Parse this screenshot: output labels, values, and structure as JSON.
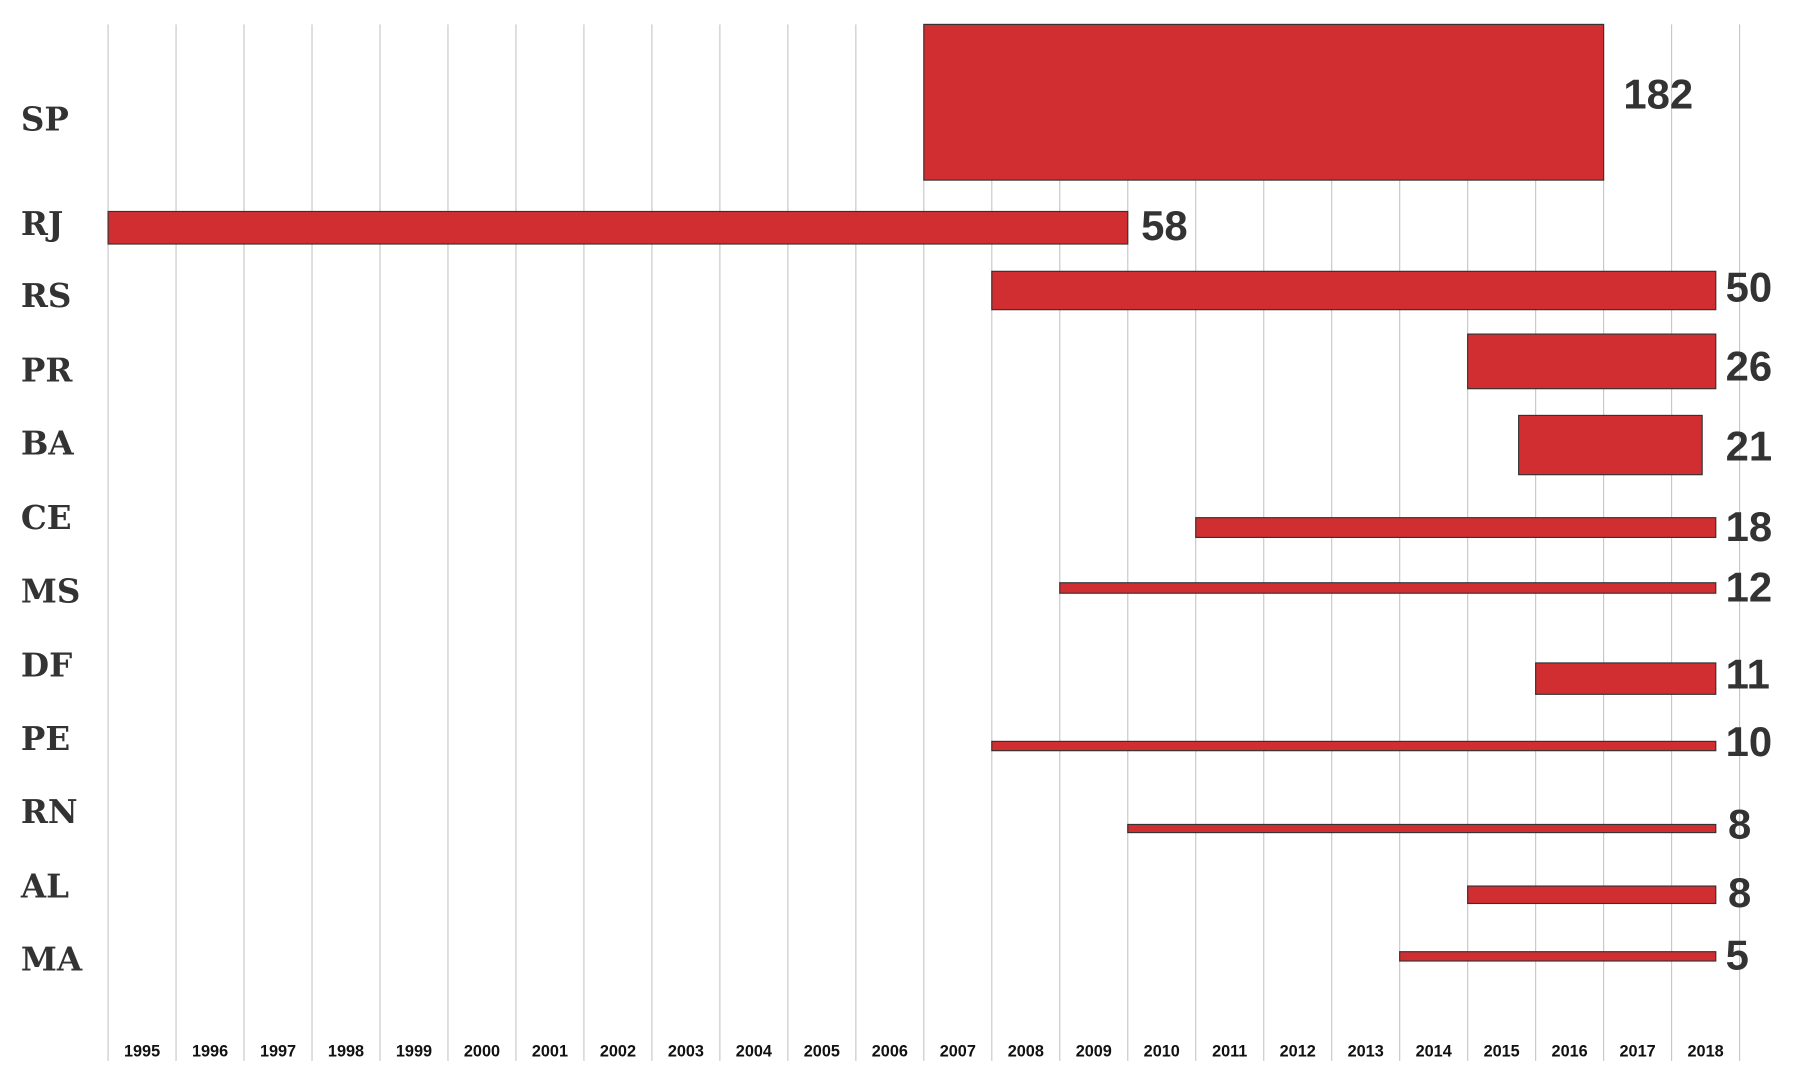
{
  "chart_data": {
    "type": "bar",
    "orientation": "horizontal-range",
    "title": "",
    "xlabel": "",
    "ylabel": "",
    "xlim": [
      1995,
      2019
    ],
    "grid": true,
    "bar_color": "#d12e32",
    "x_ticks": [
      "1995",
      "1996",
      "1997",
      "1998",
      "1999",
      "2000",
      "2001",
      "2002",
      "2003",
      "2004",
      "2005",
      "2006",
      "2007",
      "2008",
      "2009",
      "2010",
      "2011",
      "2012",
      "2013",
      "2014",
      "2015",
      "2016",
      "2017",
      "2018"
    ],
    "rows": [
      {
        "label": "SP",
        "value": "182",
        "start": 2007,
        "end": 2017
      },
      {
        "label": "RJ",
        "value": "58",
        "start": 1995,
        "end": 2010
      },
      {
        "label": "RS",
        "value": "50",
        "start": 2008,
        "end": 2018.65
      },
      {
        "label": "PR",
        "value": "26",
        "start": 2015,
        "end": 2018.65
      },
      {
        "label": "BA",
        "value": "21",
        "start": 2015.75,
        "end": 2018.45
      },
      {
        "label": "CE",
        "value": "18",
        "start": 2011,
        "end": 2018.65
      },
      {
        "label": "MS",
        "value": "12",
        "start": 2009,
        "end": 2018.65
      },
      {
        "label": "DF",
        "value": "11",
        "start": 2016,
        "end": 2018.65
      },
      {
        "label": "PE",
        "value": "10",
        "start": 2008,
        "end": 2018.65
      },
      {
        "label": "RN",
        "value": "8",
        "start": 2010,
        "end": 2018.65
      },
      {
        "label": "AL",
        "value": "8",
        "start": 2015,
        "end": 2018.65
      },
      {
        "label": "MA",
        "value": "5",
        "start": 2014,
        "end": 2018.65
      }
    ]
  }
}
